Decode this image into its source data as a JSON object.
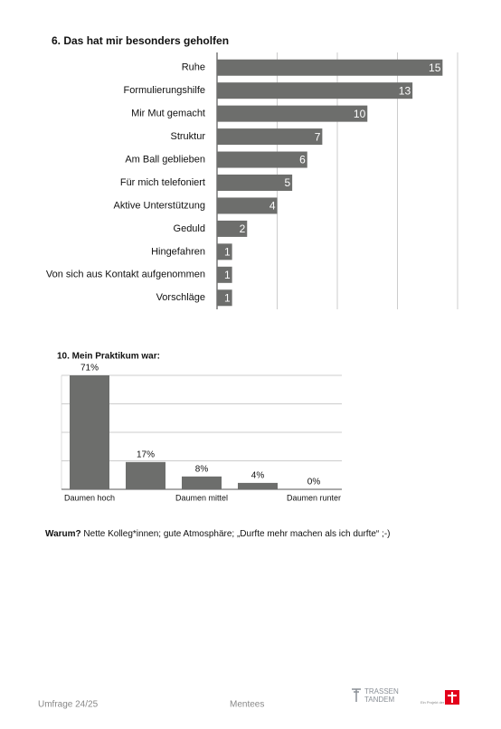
{
  "chart_data": [
    {
      "type": "bar",
      "horizontal": true,
      "title": "6. Das hat mir besonders geholfen",
      "categories": [
        "Ruhe",
        "Formulierungshilfe",
        "Mir Mut gemacht",
        "Struktur",
        "Am Ball geblieben",
        "Für mich telefoniert",
        "Aktive Unterstützung",
        "Geduld",
        "Hingefahren",
        "Von sich aus Kontakt aufgenommen",
        "Vorschläge"
      ],
      "values": [
        15,
        13,
        10,
        7,
        6,
        5,
        4,
        2,
        1,
        1,
        1
      ],
      "color": "#6d6e6c",
      "xlim": [
        0,
        16
      ],
      "xticks": [
        0,
        4,
        8,
        12,
        16
      ],
      "grid": true
    },
    {
      "type": "bar",
      "horizontal": false,
      "title": "10. Mein Praktikum war:",
      "categories": [
        "Daumen hoch",
        null,
        "Daumen mittel",
        null,
        "Daumen runter"
      ],
      "values": [
        71,
        17,
        8,
        4,
        0
      ],
      "value_labels": [
        "71%",
        "17%",
        "8%",
        "4%",
        "0%"
      ],
      "color": "#6d6e6c",
      "ylim": [
        0,
        71
      ],
      "yticks": [
        0,
        17.75,
        35.5,
        53.25,
        71
      ],
      "grid": true
    }
  ],
  "note": {
    "label": "Warum?",
    "text": "Nette Kolleg*innen; gute Atmosphäre; „Durfte mehr machen als ich durfte“ ;-)"
  },
  "footer": {
    "survey": "Umfrage 24/25",
    "group": "Mentees",
    "logo_line1": "TRASSEN",
    "logo_line2": "TANDEM",
    "project": "Ein Projekt der"
  }
}
